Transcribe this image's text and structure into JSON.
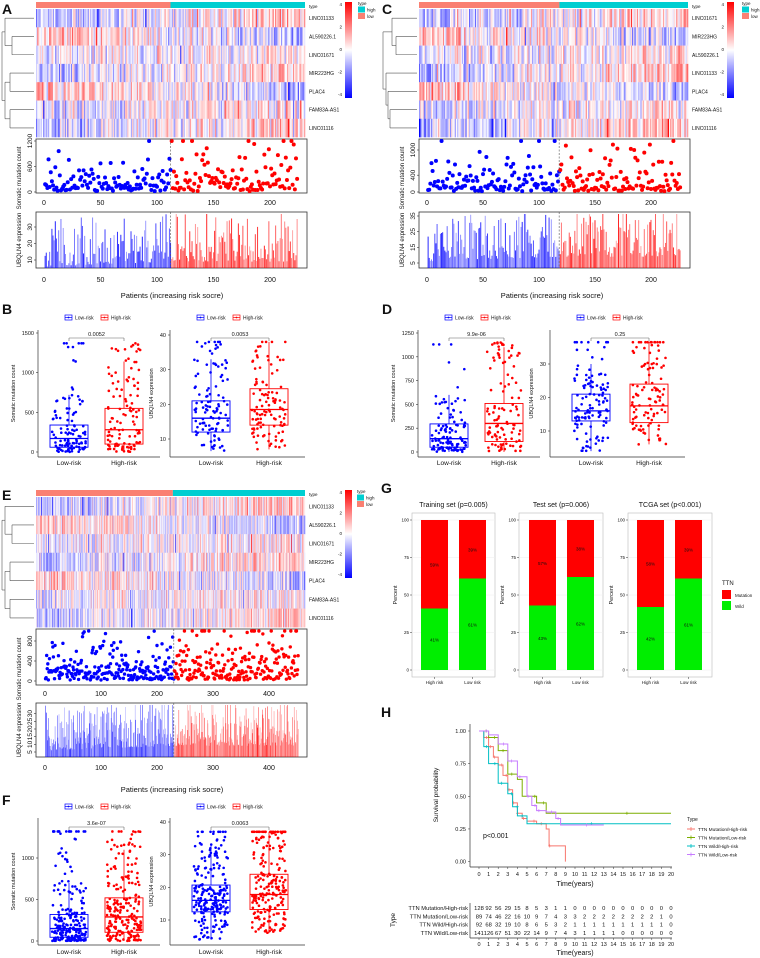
{
  "colors": {
    "low_risk": "#0000FF",
    "high_risk": "#FF0000",
    "anno_high": "#00CED1",
    "anno_low": "#FA8072",
    "mutation": "#FF0000",
    "wild": "#00EE00"
  },
  "risk_panels": [
    {
      "letter": "A",
      "genes": [
        "LINC01133",
        "AL590226.1",
        "LINC01671",
        "MIR223HG",
        "PLAC4",
        "FAM83A-AS1",
        "LINC01116"
      ],
      "n_patients": 224,
      "split": 112,
      "type_legend": {
        "title": "type",
        "high": "high",
        "low": "low",
        "anno_label": "type"
      },
      "colorbar_ticks": [
        "4",
        "2",
        "0",
        "-2",
        "-4"
      ],
      "scatter_ylabel": "Somatic mutation count",
      "scatter_yticks": [
        0,
        600,
        1200
      ],
      "bar_ylabel": "UBQLN4 expression",
      "bar_yticks": [
        10,
        20,
        30
      ],
      "xticks": [
        0,
        50,
        100,
        150,
        200
      ],
      "xlabel": "Patients (increasing risk socre)"
    },
    {
      "letter": "C",
      "genes": [
        "LINC01671",
        "MIR223HG",
        "AL590226.1",
        "LINC01133",
        "PLAC4",
        "FAM83A-AS1",
        "LINC01116"
      ],
      "n_patients": 226,
      "split": 118,
      "type_legend": {
        "title": "type",
        "high": "high",
        "low": "low",
        "anno_label": "type"
      },
      "colorbar_ticks": [
        "4",
        "2",
        "0",
        "-2",
        "-4"
      ],
      "scatter_ylabel": "Somatic mutation count",
      "scatter_yticks": [
        0,
        400,
        1000
      ],
      "bar_ylabel": "UBQLN4 expression",
      "bar_yticks": [
        5,
        15,
        25,
        35
      ],
      "xticks": [
        0,
        50,
        100,
        150,
        200
      ],
      "xlabel": "Patients (increasing risk socre)"
    },
    {
      "letter": "E",
      "genes": [
        "LINC01133",
        "AL590226.1",
        "LINC01671",
        "MIR223HG",
        "PLAC4",
        "FAM83A-AS1",
        "LINC01116"
      ],
      "n_patients": 452,
      "split": 230,
      "type_legend": {
        "title": "type",
        "high": "high",
        "low": "low",
        "anno_label": "type"
      },
      "colorbar_ticks": [
        "4",
        "2",
        "0",
        "-2",
        "-4"
      ],
      "scatter_ylabel": "Somatic mutation count",
      "scatter_yticks": [
        0,
        400,
        800
      ],
      "bar_ylabel": "UBQLN4 expression",
      "bar_yticks": [
        5,
        10,
        15,
        20,
        25,
        30
      ],
      "xticks": [
        0,
        100,
        200,
        300,
        400
      ],
      "xlabel": "Patients (increasing risk socre)"
    }
  ],
  "box_panels": [
    {
      "letter": "B",
      "legend": [
        "Low-risk",
        "High-risk"
      ],
      "plots": [
        {
          "ylabel": "Somatic mutation count",
          "yticks": [
            0,
            500,
            1000,
            1500
          ],
          "p": "0.0052",
          "groups": [
            {
              "name": "Low-risk",
              "n": 112,
              "stats": [
                0,
                60,
                170,
                340,
                720
              ],
              "max": 1370
            },
            {
              "name": "High-risk",
              "n": 112,
              "stats": [
                0,
                100,
                280,
                550,
                1140
              ],
              "max": 1370
            }
          ]
        },
        {
          "ylabel": "UBQLN4 expression",
          "yticks": [
            10,
            20,
            30,
            40
          ],
          "p": "0.0053",
          "groups": [
            {
              "name": "Low-risk",
              "n": 112,
              "stats": [
                6.5,
                12,
                16,
                21,
                33
              ],
              "max": 38
            },
            {
              "name": "High-risk",
              "n": 112,
              "stats": [
                7,
                14,
                18.5,
                24.5,
                38
              ],
              "max": 38
            }
          ]
        }
      ]
    },
    {
      "letter": "D",
      "legend": [
        "Low-risk",
        "High-risk"
      ],
      "plots": [
        {
          "ylabel": "Somatic mutation count",
          "yticks": [
            0,
            250,
            500,
            750,
            1000,
            1250
          ],
          "p": "9.9e-06",
          "groups": [
            {
              "name": "Low-risk",
              "n": 118,
              "stats": [
                0,
                50,
                140,
                295,
                600
              ],
              "max": 1130
            },
            {
              "name": "High-risk",
              "n": 108,
              "stats": [
                0,
                110,
                300,
                510,
                1100
              ],
              "max": 1150
            }
          ]
        },
        {
          "ylabel": "UBQLN4 expression",
          "yticks": [
            10,
            20,
            30
          ],
          "p": "0.25",
          "groups": [
            {
              "name": "Low-risk",
              "n": 118,
              "stats": [
                4,
                13,
                16,
                21,
                30
              ],
              "max": 36.5
            },
            {
              "name": "High-risk",
              "n": 108,
              "stats": [
                6,
                12.5,
                17.5,
                24,
                36.5
              ],
              "max": 36.5
            }
          ]
        }
      ]
    },
    {
      "letter": "F",
      "legend": [
        "Low-risk",
        "High-risk"
      ],
      "plots": [
        {
          "ylabel": "Somatic mutation count",
          "yticks": [
            0,
            500,
            1000
          ],
          "p": "3.6e-07",
          "groups": [
            {
              "name": "Low-risk",
              "n": 230,
              "stats": [
                0,
                45,
                150,
                320,
                700
              ],
              "max": 1320
            },
            {
              "name": "High-risk",
              "n": 222,
              "stats": [
                0,
                105,
                290,
                520,
                1100
              ],
              "max": 1320
            }
          ]
        },
        {
          "ylabel": "UBQLN4 expression",
          "yticks": [
            10,
            20,
            30,
            40
          ],
          "p": "0.0063",
          "groups": [
            {
              "name": "Low-risk",
              "n": 230,
              "stats": [
                4,
                12.5,
                16,
                20.7,
                33
              ],
              "max": 37
            },
            {
              "name": "High-risk",
              "n": 222,
              "stats": [
                6,
                13.2,
                17.8,
                24,
                37
              ],
              "max": 37
            }
          ]
        }
      ]
    }
  ],
  "ttn_panel": {
    "letter": "G",
    "ylabel": "Percent",
    "yticks": [
      0,
      25,
      50,
      75,
      100
    ],
    "legend": {
      "title": "TTN",
      "items": [
        "Mutation",
        "Wild"
      ]
    },
    "sets": [
      {
        "title": "Training set (p=0.005)",
        "groups": [
          {
            "name": "High risk",
            "mutation": 59,
            "wild": 41,
            "mutation_label": "59%",
            "wild_label": "41%"
          },
          {
            "name": "Low risk",
            "mutation": 39,
            "wild": 61,
            "mutation_label": "39%",
            "wild_label": "61%"
          }
        ]
      },
      {
        "title": "Test set (p=0.006)",
        "groups": [
          {
            "name": "High risk",
            "mutation": 57,
            "wild": 43,
            "mutation_label": "57%",
            "wild_label": "43%"
          },
          {
            "name": "Low risk",
            "mutation": 38,
            "wild": 62,
            "mutation_label": "38%",
            "wild_label": "62%"
          }
        ]
      },
      {
        "title": "TCGA set (p<0.001)",
        "groups": [
          {
            "name": "High risk",
            "mutation": 58,
            "wild": 42,
            "mutation_label": "58%",
            "wild_label": "42%"
          },
          {
            "name": "Low risk",
            "mutation": 39,
            "wild": 61,
            "mutation_label": "39%",
            "wild_label": "61%"
          }
        ]
      }
    ]
  },
  "km_panel": {
    "letter": "H",
    "ylabel": "Survival probability",
    "yticks": [
      "0.00",
      "0.25",
      "0.50",
      "0.75",
      "1.00"
    ],
    "xticks": [
      0,
      1,
      2,
      3,
      4,
      5,
      6,
      7,
      8,
      9,
      10,
      11,
      12,
      13,
      14,
      15,
      16,
      17,
      18,
      19,
      20
    ],
    "xlabel": "Time(years)",
    "pvalue": "p<0.001",
    "legend_title": "Type",
    "table_ylabel": "Type",
    "series": [
      {
        "name": "TTN Mutation/High-risk",
        "color": "#F8766D",
        "steps": [
          [
            0,
            1
          ],
          [
            0.5,
            0.95
          ],
          [
            1,
            0.88
          ],
          [
            1.5,
            0.8
          ],
          [
            2,
            0.74
          ],
          [
            2.5,
            0.66
          ],
          [
            3,
            0.55
          ],
          [
            3.5,
            0.45
          ],
          [
            4,
            0.37
          ],
          [
            4.5,
            0.33
          ],
          [
            5,
            0.31
          ],
          [
            6,
            0.29
          ],
          [
            7,
            0.25
          ],
          [
            7.3,
            0.12
          ],
          [
            9,
            0.12
          ],
          [
            9,
            0
          ]
        ],
        "risk": [
          128,
          92,
          56,
          29,
          15,
          8,
          5,
          3,
          1,
          1,
          0,
          0,
          0,
          0,
          0,
          0,
          0,
          0,
          0,
          0,
          0
        ]
      },
      {
        "name": "TTN Mutation/Low-risk",
        "color": "#7CAE00",
        "steps": [
          [
            0,
            1
          ],
          [
            1,
            0.95
          ],
          [
            2,
            0.85
          ],
          [
            3,
            0.67
          ],
          [
            4,
            0.63
          ],
          [
            4.5,
            0.5
          ],
          [
            6,
            0.45
          ],
          [
            7,
            0.37
          ],
          [
            20,
            0.37
          ]
        ],
        "risk": [
          89,
          74,
          46,
          22,
          16,
          10,
          9,
          7,
          4,
          3,
          3,
          2,
          2,
          2,
          2,
          2,
          2,
          2,
          2,
          1,
          0
        ]
      },
      {
        "name": "TTN Wild/High-risk",
        "color": "#00BFC4",
        "steps": [
          [
            0,
            1
          ],
          [
            0.5,
            0.88
          ],
          [
            1,
            0.75
          ],
          [
            2,
            0.6
          ],
          [
            3,
            0.52
          ],
          [
            3.5,
            0.42
          ],
          [
            4,
            0.35
          ],
          [
            5,
            0.29
          ],
          [
            20,
            0.29
          ]
        ],
        "risk": [
          92,
          68,
          32,
          19,
          10,
          8,
          6,
          5,
          3,
          2,
          1,
          1,
          1,
          1,
          1,
          1,
          1,
          1,
          1,
          1,
          0
        ]
      },
      {
        "name": "TTN Wild/Low-risk",
        "color": "#C77CFF",
        "steps": [
          [
            0,
            1
          ],
          [
            1,
            0.97
          ],
          [
            2,
            0.9
          ],
          [
            3,
            0.77
          ],
          [
            4,
            0.65
          ],
          [
            5,
            0.5
          ],
          [
            5.5,
            0.43
          ],
          [
            6,
            0.39
          ],
          [
            7,
            0.38
          ],
          [
            8,
            0.33
          ],
          [
            8.5,
            0.28
          ],
          [
            13,
            0.28
          ]
        ],
        "risk": [
          141,
          126,
          67,
          51,
          30,
          22,
          14,
          9,
          7,
          4,
          3,
          1,
          1,
          1,
          1,
          0,
          0,
          0,
          0,
          0,
          0
        ]
      }
    ]
  }
}
